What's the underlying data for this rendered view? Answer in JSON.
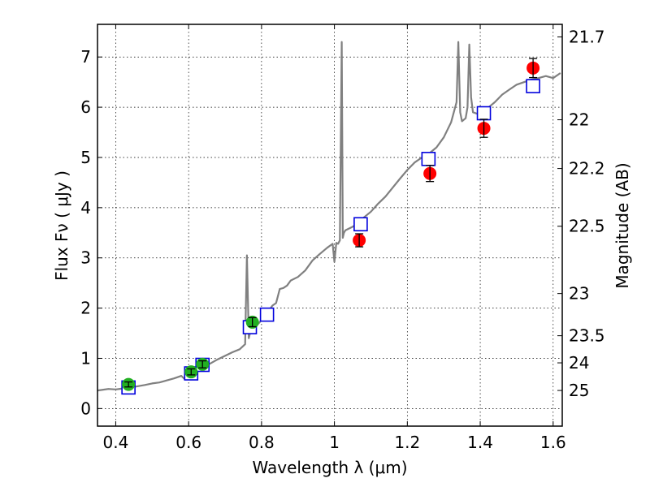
{
  "chart_data": {
    "type": "scatter",
    "xlabel": "Wavelength  λ (μm)",
    "ylabel": "Flux  Fν  ( μJy )",
    "y2label": "Magnitude (AB)",
    "xlim": [
      0.35,
      1.625
    ],
    "ylim": [
      -0.35,
      7.65
    ],
    "grid": true,
    "x_ticks": [
      0.4,
      0.6,
      0.8,
      1.0,
      1.2,
      1.4,
      1.6
    ],
    "x_tick_labels": [
      "0.4",
      "0.6",
      "0.8",
      "1",
      "1.2",
      "1.4",
      "1.6"
    ],
    "y_ticks": [
      0,
      1,
      2,
      3,
      4,
      5,
      6,
      7
    ],
    "y_tick_labels": [
      "0",
      "1",
      "2",
      "3",
      "4",
      "5",
      "6",
      "7"
    ],
    "mag_ticks": [
      {
        "label": "21.7",
        "flux": 7.4
      },
      {
        "label": "22",
        "flux": 5.75
      },
      {
        "label": "22.2",
        "flux": 4.78
      },
      {
        "label": "22.5",
        "flux": 3.63
      },
      {
        "label": "23",
        "flux": 2.29
      },
      {
        "label": "23.5",
        "flux": 1.45
      },
      {
        "label": "24",
        "flux": 0.91
      },
      {
        "label": "25",
        "flux": 0.36
      }
    ],
    "colors": {
      "spectrum": "#808080",
      "green_points": "#22b022",
      "red_points": "#ff0000",
      "model_boxes": "#0000dd",
      "errorbars": "#000000"
    },
    "series": [
      {
        "kind": "spectrum",
        "x": [
          0.35,
          0.38,
          0.4,
          0.42,
          0.45,
          0.48,
          0.5,
          0.52,
          0.54,
          0.56,
          0.58,
          0.59,
          0.6,
          0.62,
          0.64,
          0.66,
          0.68,
          0.7,
          0.72,
          0.74,
          0.755,
          0.76,
          0.765,
          0.77,
          0.78,
          0.79,
          0.8,
          0.81,
          0.82,
          0.83,
          0.84,
          0.85,
          0.86,
          0.87,
          0.88,
          0.9,
          0.92,
          0.94,
          0.96,
          0.98,
          0.995,
          1.0,
          1.005,
          1.01,
          1.015,
          1.02,
          1.023,
          1.026,
          1.03,
          1.05,
          1.07,
          1.08,
          1.1,
          1.12,
          1.14,
          1.16,
          1.18,
          1.2,
          1.22,
          1.24,
          1.26,
          1.28,
          1.3,
          1.32,
          1.335,
          1.34,
          1.345,
          1.35,
          1.36,
          1.365,
          1.37,
          1.375,
          1.38,
          1.4,
          1.42,
          1.44,
          1.46,
          1.48,
          1.5,
          1.52,
          1.54,
          1.56,
          1.58,
          1.6,
          1.62
        ],
        "y": [
          0.36,
          0.39,
          0.38,
          0.4,
          0.43,
          0.47,
          0.5,
          0.52,
          0.56,
          0.6,
          0.65,
          0.58,
          0.68,
          0.74,
          0.82,
          0.9,
          0.98,
          1.05,
          1.12,
          1.18,
          1.28,
          3.05,
          1.4,
          1.55,
          1.62,
          1.68,
          1.76,
          1.88,
          1.95,
          2.05,
          2.1,
          2.38,
          2.4,
          2.45,
          2.55,
          2.62,
          2.75,
          2.95,
          3.08,
          3.2,
          3.28,
          2.92,
          3.3,
          3.28,
          3.35,
          7.3,
          3.4,
          3.5,
          3.55,
          3.62,
          3.72,
          3.8,
          3.92,
          4.08,
          4.22,
          4.4,
          4.58,
          4.75,
          4.9,
          5.0,
          5.08,
          5.2,
          5.4,
          5.7,
          6.1,
          7.3,
          5.9,
          5.72,
          5.78,
          6.0,
          7.25,
          6.2,
          5.9,
          5.85,
          5.98,
          6.1,
          6.25,
          6.35,
          6.45,
          6.5,
          6.55,
          6.58,
          6.62,
          6.58,
          6.68
        ]
      },
      {
        "kind": "model_boxes",
        "x": [
          0.435,
          0.607,
          0.638,
          0.768,
          0.815,
          1.072,
          1.258,
          1.41,
          1.545
        ],
        "y": [
          0.42,
          0.7,
          0.87,
          1.62,
          1.87,
          3.67,
          4.97,
          5.88,
          6.42
        ]
      },
      {
        "kind": "observed",
        "color_key": "green_points",
        "x": [
          0.435,
          0.607,
          0.638,
          0.775
        ],
        "y": [
          0.48,
          0.73,
          0.88,
          1.72
        ],
        "err": [
          0.05,
          0.06,
          0.07,
          0.09
        ]
      },
      {
        "kind": "observed",
        "color_key": "red_points",
        "x": [
          1.068,
          1.262,
          1.41,
          1.545
        ],
        "y": [
          3.35,
          4.68,
          5.58,
          6.78
        ],
        "err": [
          0.13,
          0.16,
          0.18,
          0.19
        ]
      }
    ]
  }
}
